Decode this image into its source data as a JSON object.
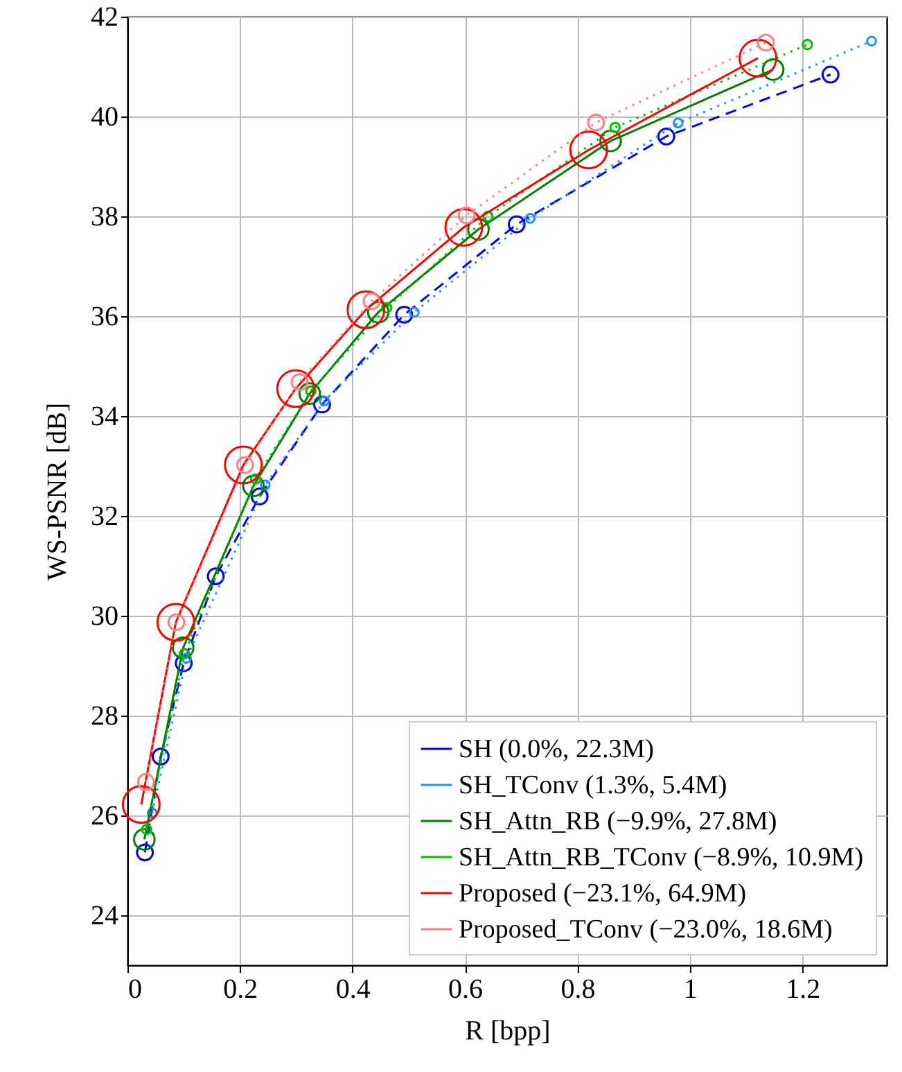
{
  "chart_data": {
    "type": "line",
    "xlabel": "R [bpp]",
    "ylabel": "WS-PSNR [dB]",
    "xlim": [
      0,
      1.35
    ],
    "ylim": [
      23,
      42
    ],
    "xticks": [
      0,
      0.2,
      0.4,
      0.6,
      0.8,
      1,
      1.2
    ],
    "yticks": [
      24,
      26,
      28,
      30,
      32,
      34,
      36,
      38,
      40,
      42
    ],
    "grid": true,
    "legend": "bottom right",
    "marker": "circle",
    "series": [
      {
        "name": "SH (0.0%, 22.3M)",
        "color": "#0000ff",
        "line_style": "dashed",
        "x": [
          0.031,
          0.059,
          0.1,
          0.157,
          0.235,
          0.346,
          0.492,
          0.692,
          0.958,
          1.25
        ],
        "values": [
          25.26,
          27.18,
          29.05,
          30.79,
          32.39,
          34.23,
          36.03,
          37.84,
          39.6,
          40.84
        ]
      },
      {
        "name": "SH_TConv (1.3%, 5.4M)",
        "color": "#1e90ff",
        "line_style": "dotted",
        "x": [
          0.044,
          0.105,
          0.245,
          0.35,
          0.51,
          0.716,
          0.979,
          1.323
        ],
        "values": [
          26.05,
          29.15,
          32.62,
          34.3,
          36.08,
          37.96,
          39.87,
          41.51
        ]
      },
      {
        "name": "SH_Attn_RB (−9.9%, 27.8M)",
        "color": "#008000",
        "line_style": "solid",
        "x": [
          0.03,
          0.099,
          0.224,
          0.324,
          0.446,
          0.624,
          0.859,
          1.148
        ],
        "values": [
          25.52,
          29.36,
          32.6,
          34.45,
          36.08,
          37.74,
          39.51,
          40.94
        ]
      },
      {
        "name": "SH_Attn_RB_TConv (−8.9%, 10.9M)",
        "color": "#00c000",
        "line_style": "dotted",
        "x": [
          0.034,
          0.101,
          0.228,
          0.326,
          0.461,
          0.641,
          0.867,
          1.209
        ],
        "values": [
          25.72,
          29.24,
          32.74,
          34.5,
          36.17,
          38.0,
          39.78,
          41.44
        ]
      },
      {
        "name": "Proposed (−23.1%, 64.9M)",
        "color": "#ff0000",
        "line_style": "solid",
        "x": [
          0.0245,
          0.086,
          0.206,
          0.299,
          0.424,
          0.598,
          0.82,
          1.121
        ],
        "values": [
          26.22,
          29.87,
          33.02,
          34.55,
          36.13,
          37.78,
          39.33,
          41.17
        ]
      },
      {
        "name": "Proposed_TConv (−23.0%, 18.6M)",
        "color": "#ff8080",
        "line_style": "dotted",
        "x": [
          0.033,
          0.087,
          0.209,
          0.306,
          0.434,
          0.603,
          0.833,
          1.135
        ],
        "values": [
          26.67,
          29.87,
          33.02,
          34.68,
          36.3,
          38.02,
          39.88,
          41.48
        ]
      }
    ]
  }
}
